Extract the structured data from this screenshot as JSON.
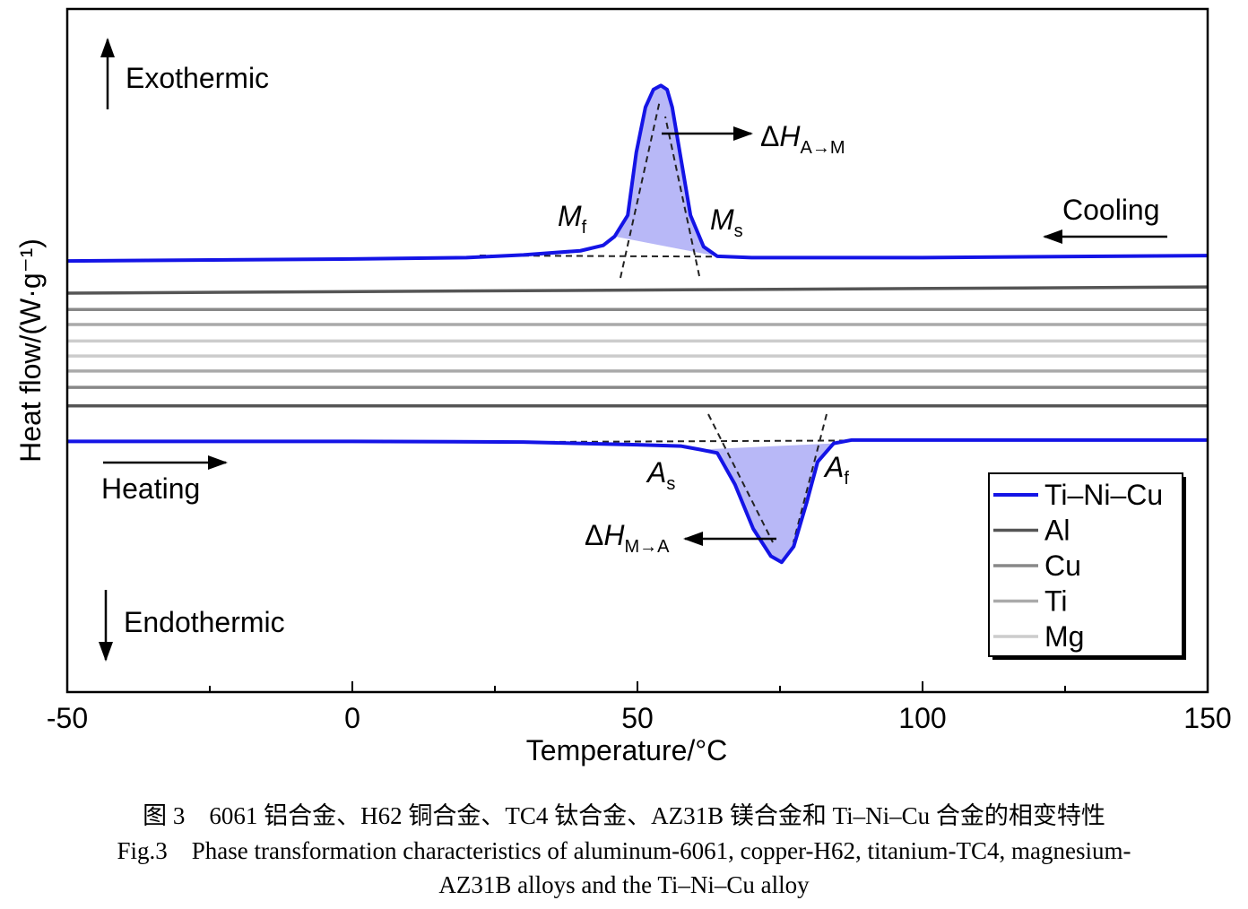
{
  "chart_data": {
    "type": "line",
    "y_label": "Heat flow/(W·g⁻¹)",
    "x_label": "Temperature/°C",
    "xlim": [
      -50,
      150
    ],
    "xticks": [
      -50,
      0,
      50,
      100,
      150
    ],
    "xminorticks": [
      -25,
      25,
      75,
      125
    ],
    "ylim": [
      0,
      10
    ],
    "legend": "lower-right",
    "series": [
      {
        "name": "Ti–Ni–Cu",
        "color": "#1414e6",
        "x_cooling": [
          -50,
          0,
          20,
          30,
          40,
          44,
          46,
          48.3,
          49.8,
          51.4,
          52.8,
          54.1,
          55.2,
          56.1,
          57.7,
          59.3,
          61.6,
          64,
          70,
          100,
          150
        ],
        "cooling": [
          6.31,
          6.34,
          6.36,
          6.4,
          6.46,
          6.54,
          6.67,
          6.98,
          7.9,
          8.56,
          8.82,
          8.88,
          8.82,
          8.56,
          7.77,
          6.98,
          6.52,
          6.38,
          6.36,
          6.36,
          6.39
        ],
        "x_heating": [
          -50,
          0,
          30,
          50,
          57.7,
          61,
          64,
          67.1,
          70.3,
          73.4,
          75.3,
          77.4,
          79.7,
          81.6,
          84.4,
          87.6,
          100,
          150
        ],
        "heating": [
          3.67,
          3.67,
          3.66,
          3.62,
          3.6,
          3.55,
          3.5,
          3.04,
          2.39,
          1.99,
          1.9,
          2.13,
          2.78,
          3.37,
          3.64,
          3.69,
          3.69,
          3.69
        ]
      },
      {
        "name": "Al",
        "color": "#555555",
        "x_cooling": [
          -50,
          150
        ],
        "cooling": [
          5.84,
          5.93
        ],
        "x_heating": [
          -50,
          150
        ],
        "heating": [
          4.19,
          4.19
        ]
      },
      {
        "name": "Cu",
        "color": "#888888",
        "x_cooling": [
          -50,
          150
        ],
        "cooling": [
          5.6,
          5.6
        ],
        "x_heating": [
          -50,
          150
        ],
        "heating": [
          4.46,
          4.46
        ]
      },
      {
        "name": "Ti",
        "color": "#aaaaaa",
        "x_cooling": [
          -50,
          150
        ],
        "cooling": [
          5.38,
          5.38
        ],
        "x_heating": [
          -50,
          150
        ],
        "heating": [
          4.7,
          4.7
        ]
      },
      {
        "name": "Mg",
        "color": "#cccccc",
        "x_cooling": [
          -50,
          150
        ],
        "cooling": [
          5.14,
          5.14
        ],
        "x_heating": [
          -50,
          150
        ],
        "heating": [
          4.92,
          4.92
        ]
      }
    ],
    "annotations": {
      "exothermic": "Exothermic",
      "endothermic": "Endothermic",
      "cooling": "Cooling",
      "heating": "Heating",
      "mf": {
        "main": "M",
        "sub": "f"
      },
      "ms": {
        "main": "M",
        "sub": "s"
      },
      "as": {
        "main": "A",
        "sub": "s"
      },
      "af": {
        "main": "A",
        "sub": "f"
      },
      "dh_am": {
        "prefix": "Δ",
        "main": "H",
        "sub": "A→M"
      },
      "dh_ma": {
        "prefix": "Δ",
        "main": "H",
        "sub": "M→A"
      }
    },
    "caption": {
      "cn": "图 3　6061 铝合金、H62 铜合金、TC4 钛合金、AZ31B 镁合金和 Ti–Ni–Cu 合金的相变特性",
      "en": [
        "Fig.3　Phase transformation characteristics of aluminum-6061, copper-H62, titanium-TC4, magnesium-",
        "AZ31B alloys and the Ti–Ni–Cu alloy"
      ]
    }
  }
}
